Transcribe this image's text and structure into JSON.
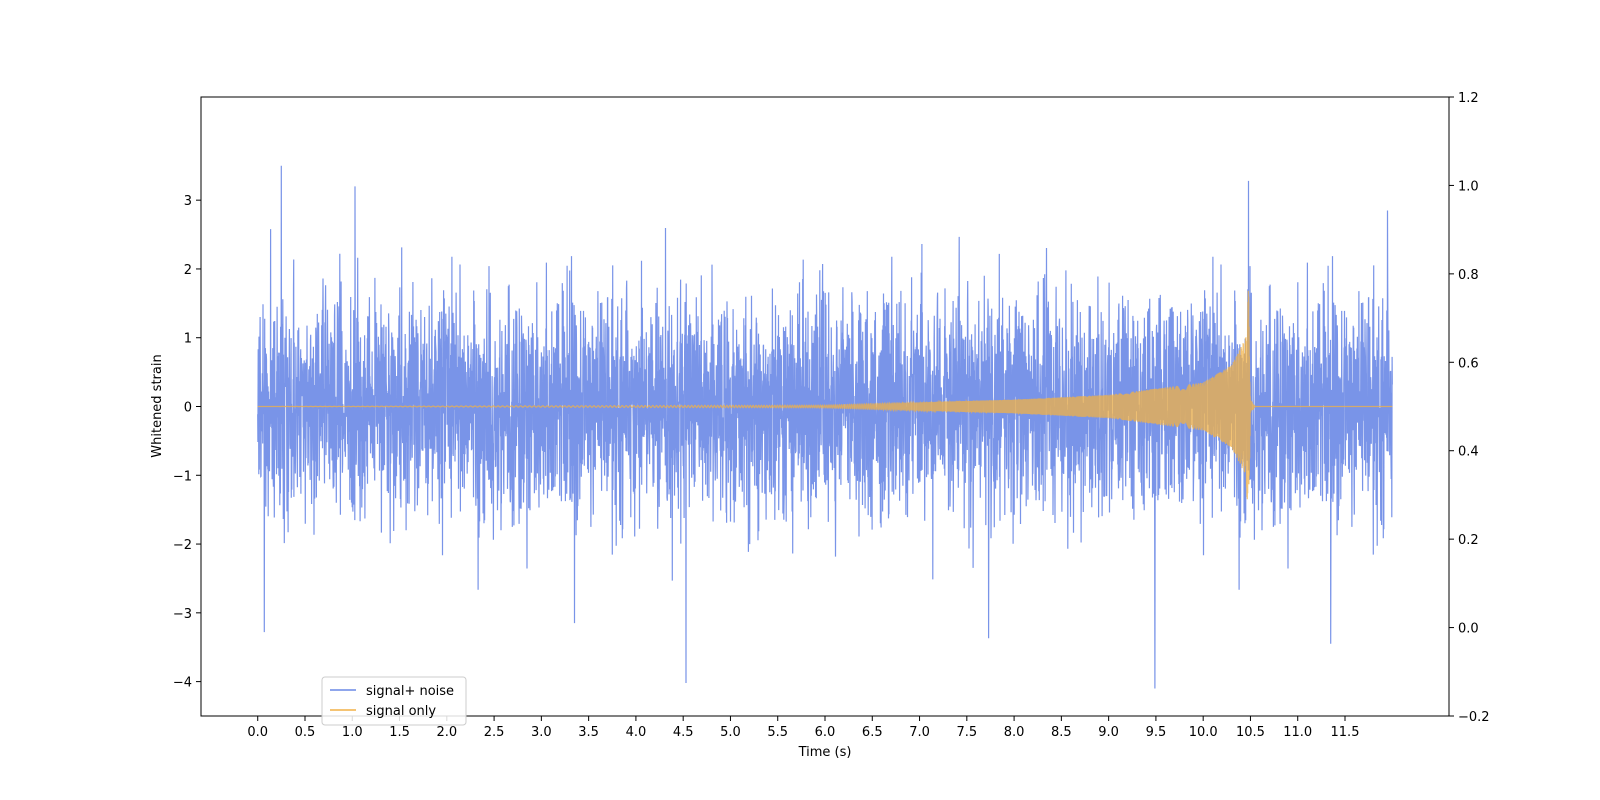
{
  "chart_data": {
    "type": "line",
    "title": "",
    "xlabel": "Time (s)",
    "ylabel": "Whitened strain",
    "y2label": "",
    "xlim": [
      -0.6,
      12.6
    ],
    "ylim": [
      -4.5,
      4.5
    ],
    "y2lim": [
      -0.2,
      1.2
    ],
    "x_ticks": [
      0.0,
      0.5,
      1.0,
      1.5,
      2.0,
      2.5,
      3.0,
      3.5,
      4.0,
      4.5,
      5.0,
      5.5,
      6.0,
      6.5,
      7.0,
      7.5,
      8.0,
      8.5,
      9.0,
      9.5,
      10.0,
      10.5,
      11.0,
      11.5
    ],
    "x_tick_labels": [
      "0.0",
      "0.5",
      "1.0",
      "1.5",
      "2.0",
      "2.5",
      "3.0",
      "3.5",
      "4.0",
      "4.5",
      "5.0",
      "5.5",
      "6.0",
      "6.5",
      "7.0",
      "7.5",
      "8.0",
      "8.5",
      "9.0",
      "9.5",
      "10.0",
      "10.5",
      "11.0",
      "11.5"
    ],
    "y_ticks": [
      -4,
      -3,
      -2,
      -1,
      0,
      1,
      2,
      3
    ],
    "y_tick_labels": [
      "−4",
      "−3",
      "−2",
      "−1",
      "0",
      "1",
      "2",
      "3"
    ],
    "y2_ticks": [
      -0.2,
      0.0,
      0.2,
      0.4,
      0.6,
      0.8,
      1.0,
      1.2
    ],
    "y2_tick_labels": [
      "−0.2",
      "0.0",
      "0.2",
      "0.4",
      "0.6",
      "0.8",
      "1.0",
      "1.2"
    ],
    "grid": false,
    "legend_position": "lower-left",
    "series": [
      {
        "name": "signal+ noise",
        "color": "#6a88e6",
        "x_range": [
          0.0,
          12.0
        ],
        "typical_amplitude": 1.6,
        "peaks": [
          {
            "x": 0.25,
            "y": 3.5
          },
          {
            "x": 1.03,
            "y": 3.2
          },
          {
            "x": 10.48,
            "y": 3.28
          },
          {
            "x": 11.95,
            "y": 2.85
          },
          {
            "x": 0.07,
            "y": -3.28
          },
          {
            "x": 3.35,
            "y": -3.15
          },
          {
            "x": 4.53,
            "y": -4.02
          },
          {
            "x": 7.73,
            "y": -3.37
          },
          {
            "x": 9.49,
            "y": -4.1
          },
          {
            "x": 11.35,
            "y": -3.45
          }
        ]
      },
      {
        "name": "signal only",
        "color": "#f2b146",
        "description_points": [
          {
            "x": 0.0,
            "amplitude": 0.0
          },
          {
            "x": 6.0,
            "amplitude": 0.02
          },
          {
            "x": 7.0,
            "amplitude": 0.06
          },
          {
            "x": 8.0,
            "amplitude": 0.1
          },
          {
            "x": 9.0,
            "amplitude": 0.17
          },
          {
            "x": 10.0,
            "amplitude": 0.35
          },
          {
            "x": 10.3,
            "amplitude": 0.6
          },
          {
            "x": 10.45,
            "amplitude": 1.0
          },
          {
            "x": 10.48,
            "amplitude": 1.75
          },
          {
            "x": 10.5,
            "amplitude": 0.1
          },
          {
            "x": 10.55,
            "amplitude": 0.0
          },
          {
            "x": 12.0,
            "amplitude": 0.0
          }
        ]
      }
    ]
  }
}
